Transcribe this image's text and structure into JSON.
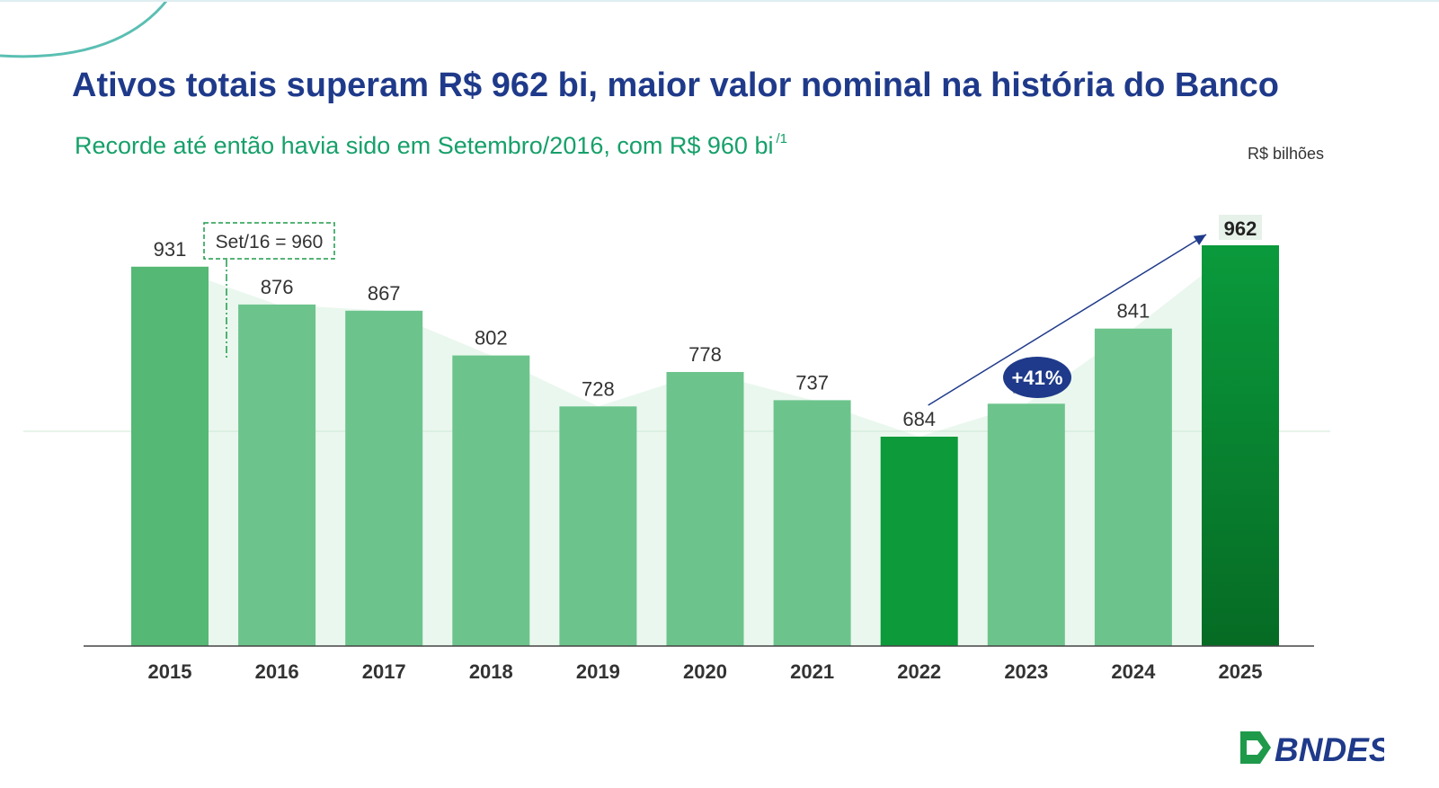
{
  "title": "Ativos totais superam R$ 962 bi, maior valor nominal na história do Banco",
  "subtitle": "Recorde até então havia sido em Setembro/2016, com R$ 960 bi",
  "subtitle_note": "/1",
  "units": "R$ bilhões",
  "brand": "BNDES",
  "chart_data": {
    "type": "bar",
    "categories": [
      "2015",
      "2016",
      "2017",
      "2018",
      "2019",
      "2020",
      "2021",
      "2022",
      "2023",
      "2024",
      "2025"
    ],
    "values": [
      931,
      876,
      867,
      802,
      728,
      778,
      737,
      684,
      732,
      841,
      962
    ],
    "ylim": [
      380,
      962
    ],
    "colors": {
      "default": "#6cc48c",
      "first": "#55b874",
      "highlight": "#0d9a3a",
      "latest_top": "#0a9a3c",
      "latest_bottom": "#066b24"
    },
    "highlight_index": 7,
    "latest_index": 10,
    "annotations": [
      {
        "text": "Set/16 = 960",
        "style": "dashed-box"
      },
      {
        "text": "+41%",
        "style": "ellipse-badge",
        "from_index": 7,
        "to_index": 10
      }
    ]
  }
}
